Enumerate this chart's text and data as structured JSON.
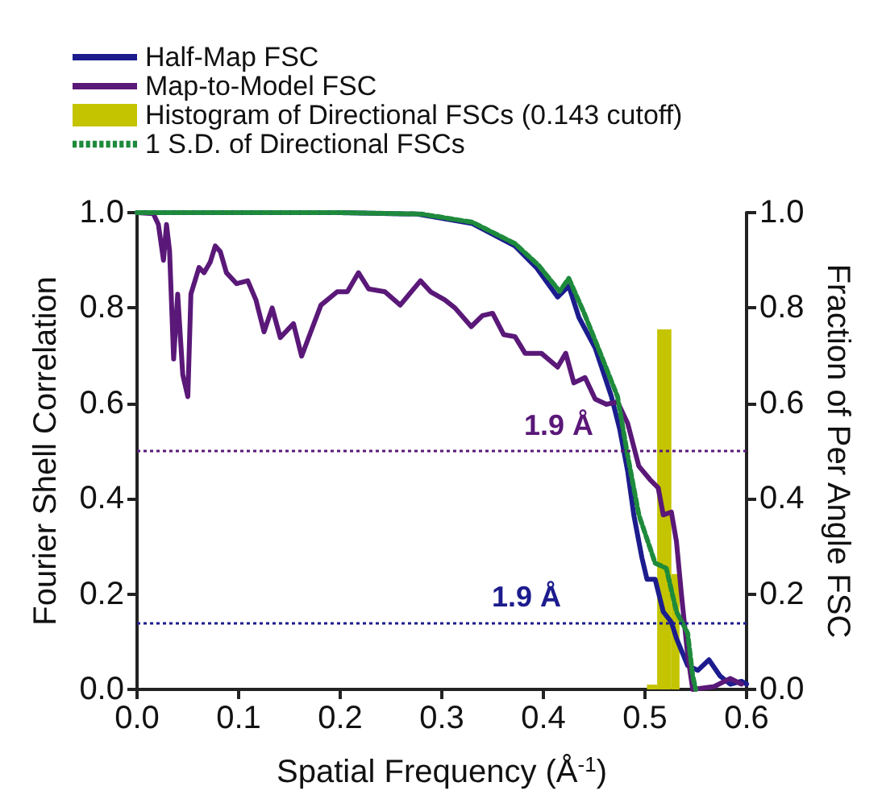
{
  "chart_data": {
    "type": "line",
    "xlabel": "Spatial Frequency (Å$^{-1}$)",
    "ylabel": "Fourier Shell Correlation",
    "y2label": "Fraction of Per Angle FSC",
    "xlim": [
      0,
      0.6
    ],
    "xticks": [
      {
        "value": 0,
        "label": "0.0"
      },
      {
        "value": 0.1,
        "label": "0.1"
      },
      {
        "value": 0.2,
        "label": "0.2"
      },
      {
        "value": 0.3,
        "label": "0.3"
      },
      {
        "value": 0.4,
        "label": "0.4"
      },
      {
        "value": 0.5,
        "label": "0.5"
      },
      {
        "value": 0.6,
        "label": "0.6"
      }
    ],
    "ylim": [
      0,
      1
    ],
    "yticks": [
      {
        "value": 0,
        "label": "0.0"
      },
      {
        "value": 0.2,
        "label": "0.2"
      },
      {
        "value": 0.4,
        "label": "0.4"
      },
      {
        "value": 0.6,
        "label": "0.6"
      },
      {
        "value": 0.8,
        "label": "0.8"
      },
      {
        "value": 1,
        "label": "1.0"
      }
    ],
    "y2lim": [
      0,
      1
    ],
    "y2ticks": [
      {
        "value": 0,
        "label": "0.0"
      },
      {
        "value": 0.2,
        "label": "0.2"
      },
      {
        "value": 0.4,
        "label": "0.4"
      },
      {
        "value": 0.6,
        "label": "0.6"
      },
      {
        "value": 0.8,
        "label": "0.8"
      },
      {
        "value": 1,
        "label": "1.0"
      }
    ],
    "grid": false,
    "legend": "top left",
    "marker": "none",
    "series": [
      {
        "name": "Half-Map FSC",
        "color": "#1c1c8e",
        "line_style": "solid",
        "x": [
          0,
          0.1,
          0.2,
          0.276,
          0.33,
          0.372,
          0.393,
          0.414,
          0.425,
          0.435,
          0.451,
          0.467,
          0.475,
          0.483,
          0.489,
          0.497,
          0.502,
          0.51,
          0.518,
          0.526,
          0.531,
          0.542,
          0.552,
          0.563,
          0.574,
          0.584,
          0.595,
          0.6
        ],
        "values": [
          1,
          1,
          1,
          0.997,
          0.977,
          0.93,
          0.885,
          0.823,
          0.846,
          0.78,
          0.716,
          0.614,
          0.547,
          0.457,
          0.366,
          0.276,
          0.231,
          0.231,
          0.163,
          0.141,
          0.107,
          0.05,
          0.04,
          0.062,
          0.028,
          0.011,
          0.017,
          0.011
        ]
      },
      {
        "name": "Map-to-Model FSC",
        "color": "#5a1878",
        "line_style": "solid",
        "x": [
          0,
          0.016,
          0.021,
          0.026,
          0.029,
          0.032,
          0.036,
          0.04,
          0.045,
          0.05,
          0.053,
          0.061,
          0.066,
          0.072,
          0.077,
          0.082,
          0.088,
          0.098,
          0.109,
          0.117,
          0.125,
          0.133,
          0.141,
          0.154,
          0.162,
          0.17,
          0.181,
          0.197,
          0.207,
          0.218,
          0.228,
          0.244,
          0.259,
          0.279,
          0.289,
          0.303,
          0.313,
          0.329,
          0.34,
          0.35,
          0.361,
          0.372,
          0.382,
          0.398,
          0.414,
          0.422,
          0.43,
          0.441,
          0.451,
          0.462,
          0.473,
          0.483,
          0.494,
          0.505,
          0.513,
          0.518,
          0.526,
          0.531,
          0.536,
          0.542,
          0.547,
          0.568,
          0.584,
          0.595
        ],
        "values": [
          1,
          0.998,
          0.975,
          0.9,
          0.975,
          0.92,
          0.693,
          0.829,
          0.66,
          0.614,
          0.829,
          0.885,
          0.874,
          0.896,
          0.93,
          0.918,
          0.874,
          0.851,
          0.857,
          0.817,
          0.75,
          0.8,
          0.738,
          0.767,
          0.699,
          0.744,
          0.806,
          0.834,
          0.834,
          0.874,
          0.84,
          0.834,
          0.806,
          0.857,
          0.834,
          0.817,
          0.8,
          0.761,
          0.784,
          0.789,
          0.744,
          0.74,
          0.705,
          0.705,
          0.676,
          0.705,
          0.643,
          0.654,
          0.609,
          0.598,
          0.603,
          0.558,
          0.468,
          0.44,
          0.423,
          0.366,
          0.372,
          0.31,
          0.197,
          0.073,
          0,
          0.006,
          0.023,
          0.011
        ]
      },
      {
        "name": "Histogram of Directional FSCs (0.143 cutoff)",
        "type": "histogram",
        "axis": "y2",
        "color": "#c4c400",
        "bins": [
          0.502,
          0.512,
          0.526,
          0.534
        ],
        "values": [
          0.01,
          0.755,
          0.242
        ]
      },
      {
        "name": "1 S.D. of Directional FSCs",
        "color": "#1e8a3c",
        "line_style": "dashed",
        "x": [
          0,
          0.1,
          0.2,
          0.28,
          0.33,
          0.372,
          0.395,
          0.416,
          0.425,
          0.44,
          0.457,
          0.473,
          0.483,
          0.494,
          0.51,
          0.521,
          0.531,
          0.542,
          0.547,
          0.55
        ],
        "values": [
          1,
          1,
          1,
          0.997,
          0.98,
          0.935,
          0.89,
          0.835,
          0.862,
          0.79,
          0.7,
          0.614,
          0.49,
          0.366,
          0.265,
          0.254,
          0.163,
          0.118,
          0.028,
          0
        ]
      }
    ],
    "ref_lines": [
      {
        "axis": "y",
        "value": 0.5,
        "label": "1.9 Å",
        "color": "#5a1878",
        "line_style": "dotted"
      },
      {
        "axis": "y",
        "value": 0.143,
        "label": "1.9 Å",
        "color": "#1c1c8e",
        "line_style": "dotted"
      }
    ]
  }
}
